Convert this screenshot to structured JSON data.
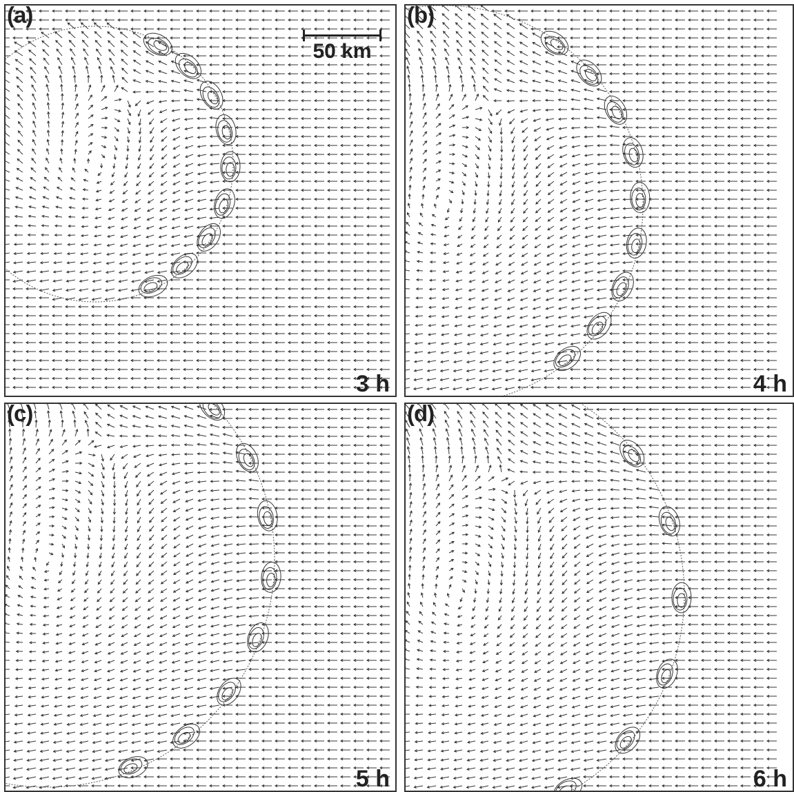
{
  "panels": [
    {
      "id": "a",
      "label": "(a)",
      "time": "3 h"
    },
    {
      "id": "b",
      "label": "(b)",
      "time": "4 h"
    },
    {
      "id": "c",
      "label": "(c)",
      "time": "5 h"
    },
    {
      "id": "d",
      "label": "(d)",
      "time": "6 h"
    }
  ],
  "scale_bar": {
    "label": "50 km"
  },
  "colors": {
    "ink": "#333333",
    "background": "#ffffff"
  }
}
